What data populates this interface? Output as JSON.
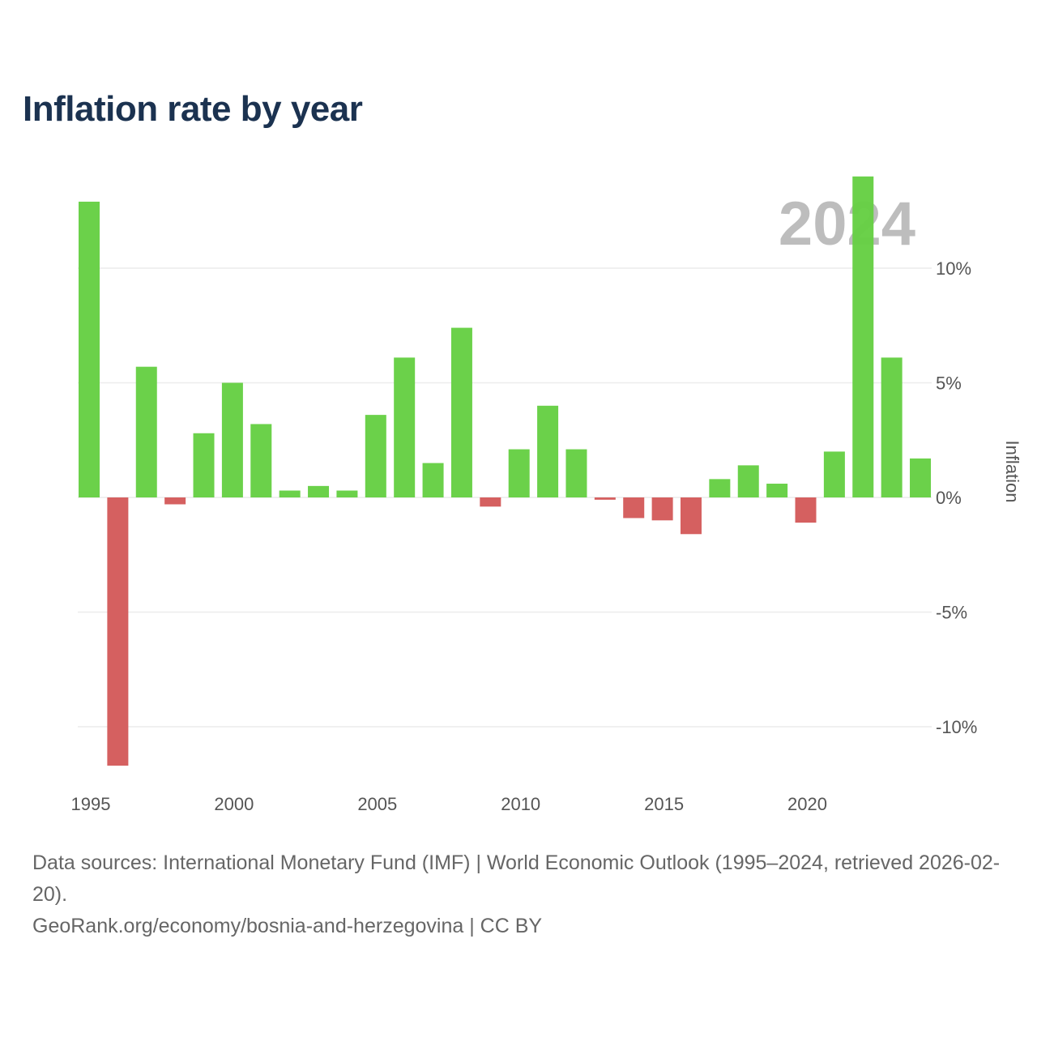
{
  "chart_data": {
    "type": "bar",
    "title": "Inflation rate by year",
    "ylabel": "Inflation",
    "xlabel": "",
    "watermark_year": "2024",
    "ylim": [
      -12.5,
      14.5
    ],
    "yticks": [
      -10,
      -5,
      0,
      5,
      10
    ],
    "ytick_labels": [
      "-10%",
      "-5%",
      "0%",
      "5%",
      "10%"
    ],
    "xticks": [
      1995,
      2000,
      2005,
      2010,
      2015,
      2020
    ],
    "xtick_labels": [
      "1995",
      "2000",
      "2005",
      "2010",
      "2015",
      "2020"
    ],
    "grid": true,
    "categories": [
      1995,
      1996,
      1997,
      1998,
      1999,
      2000,
      2001,
      2002,
      2003,
      2004,
      2005,
      2006,
      2007,
      2008,
      2009,
      2010,
      2011,
      2012,
      2013,
      2014,
      2015,
      2016,
      2017,
      2018,
      2019,
      2020,
      2021,
      2022,
      2023,
      2024
    ],
    "values": [
      12.9,
      -11.7,
      5.7,
      -0.3,
      2.8,
      5.0,
      3.2,
      0.3,
      0.5,
      0.3,
      3.6,
      6.1,
      1.5,
      7.4,
      -0.4,
      2.1,
      4.0,
      2.1,
      -0.1,
      -0.9,
      -1.0,
      -1.6,
      0.8,
      1.4,
      0.6,
      -1.1,
      2.0,
      14.0,
      6.1,
      1.7
    ],
    "colors": {
      "positive": "#66d044",
      "negative": "#d45b5b",
      "grid": "#ececec"
    }
  },
  "footer": {
    "sources": "Data sources: International Monetary Fund (IMF) | World Economic Outlook (1995–2024, retrieved 2026-02-20).",
    "attribution": "GeoRank.org/economy/bosnia-and-herzegovina | CC BY"
  }
}
